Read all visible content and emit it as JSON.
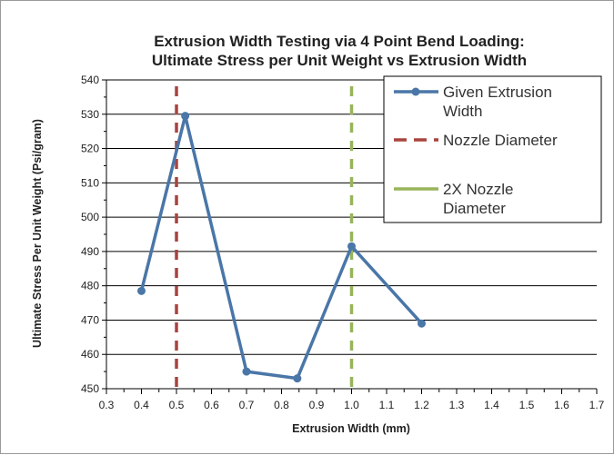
{
  "chart_data": {
    "type": "line",
    "title": [
      "Extrusion Width Testing via 4 Point Bend Loading:",
      "Ultimate Stress  per Unit Weight vs Extrusion Width"
    ],
    "xlabel": "Extrusion Width (mm)",
    "ylabel": "Ultimate Stress Per Unit Weight (Psi/gram)",
    "xlim": [
      0.3,
      1.7
    ],
    "ylim": [
      450,
      540
    ],
    "xticks": [
      "0.3",
      "0.4",
      "0.5",
      "0.6",
      "0.7",
      "0.8",
      "0.9",
      "1.0",
      "1.1",
      "1.2",
      "1.3",
      "1.4",
      "1.5",
      "1.6",
      "1.7"
    ],
    "yticks": [
      "450",
      "460",
      "470",
      "480",
      "490",
      "500",
      "510",
      "520",
      "530",
      "540"
    ],
    "grid": "horizontal",
    "legend_position": "top-right",
    "series": [
      {
        "name": "Given Extrusion Width",
        "color": "#4a76a8",
        "x": [
          0.4,
          0.525,
          0.7,
          0.845,
          1.0,
          1.2
        ],
        "y": [
          478.5,
          529.5,
          455,
          453,
          491.5,
          469
        ]
      }
    ],
    "vlines": [
      {
        "name": "Nozzle Diameter",
        "x": 0.5,
        "color": "#a8443f",
        "style": "dashed"
      },
      {
        "name": "2X Nozzle Diameter",
        "x": 1.0,
        "color": "#98b45a",
        "style": "dashed"
      }
    ],
    "legend_labels": [
      [
        "Given Extrusion",
        "Width"
      ],
      [
        "Nozzle Diameter"
      ],
      [
        "2X Nozzle",
        "Diameter"
      ]
    ]
  }
}
